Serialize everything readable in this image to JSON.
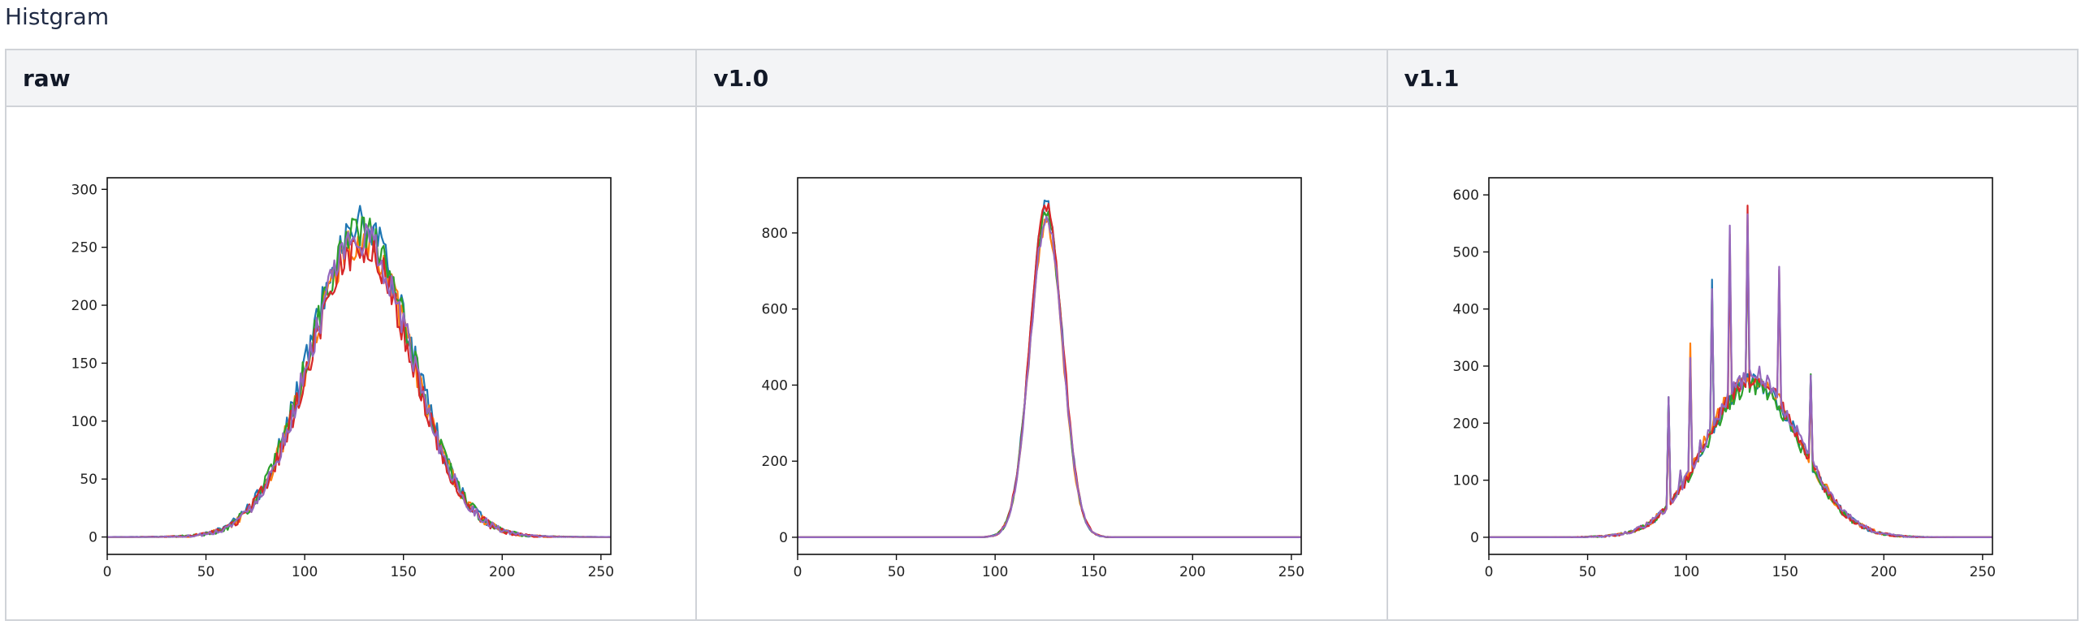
{
  "page": {
    "title": "Histgram"
  },
  "columns": [
    {
      "label": "raw"
    },
    {
      "label": "v1.0"
    },
    {
      "label": "v1.1"
    }
  ],
  "colors": {
    "series": [
      "#1f77b4",
      "#ff7f0e",
      "#2ca02c",
      "#d62728",
      "#9467bd"
    ],
    "header_bg": "#f3f4f6",
    "border": "#d0d3d8"
  },
  "chart_data": [
    {
      "type": "line",
      "series_count": 5,
      "xlim": [
        0,
        255
      ],
      "ylim": [
        -15,
        310
      ],
      "xticks": [
        0,
        50,
        100,
        150,
        200,
        250
      ],
      "yticks": [
        0,
        50,
        100,
        150,
        200,
        250,
        300
      ],
      "xlabel": "",
      "ylabel": "",
      "title": "",
      "profile": {
        "kind": "gaussian",
        "center": 128,
        "sigma": 26,
        "peak": 260,
        "noise": 16
      },
      "spikes": []
    },
    {
      "type": "line",
      "series_count": 5,
      "xlim": [
        0,
        255
      ],
      "ylim": [
        -45,
        945
      ],
      "xticks": [
        0,
        50,
        100,
        150,
        200,
        250
      ],
      "yticks": [
        0,
        200,
        400,
        600,
        800
      ],
      "xlabel": "",
      "ylabel": "",
      "title": "",
      "profile": {
        "kind": "gaussian",
        "center": 127,
        "sigma": 8.2,
        "peak": 860,
        "noise": 20
      },
      "spikes": []
    },
    {
      "type": "line",
      "series_count": 5,
      "xlim": [
        0,
        255
      ],
      "ylim": [
        -30,
        630
      ],
      "xticks": [
        0,
        50,
        100,
        150,
        200,
        250
      ],
      "yticks": [
        0,
        100,
        200,
        300,
        400,
        500,
        600
      ],
      "xlabel": "",
      "ylabel": "",
      "title": "",
      "profile": {
        "kind": "gaussian",
        "center": 134,
        "sigma": 24,
        "peak": 275,
        "noise": 16
      },
      "spikes": [
        {
          "x": 91,
          "y": 255
        },
        {
          "x": 97,
          "y": 120
        },
        {
          "x": 102,
          "y": 340
        },
        {
          "x": 107,
          "y": 175
        },
        {
          "x": 113,
          "y": 460
        },
        {
          "x": 119,
          "y": 250
        },
        {
          "x": 122,
          "y": 550
        },
        {
          "x": 126,
          "y": 290
        },
        {
          "x": 131,
          "y": 605
        },
        {
          "x": 137,
          "y": 330
        },
        {
          "x": 147,
          "y": 510
        },
        {
          "x": 163,
          "y": 295
        }
      ]
    }
  ]
}
